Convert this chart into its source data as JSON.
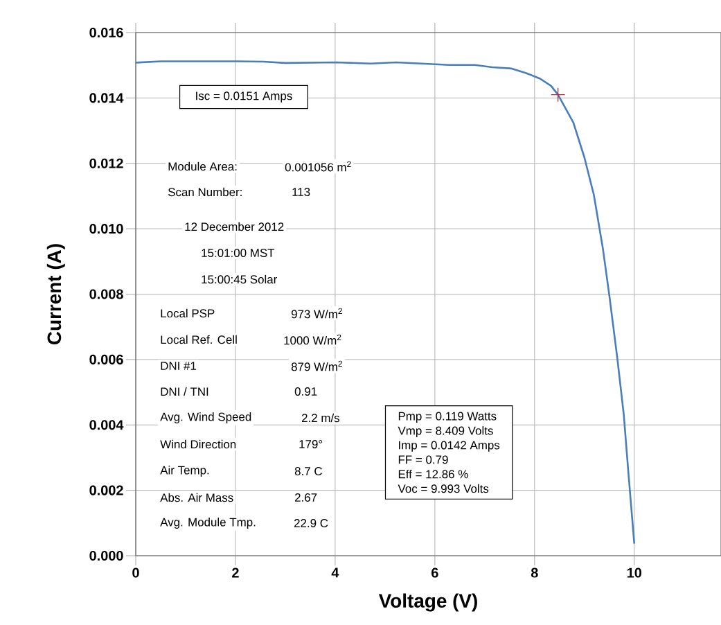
{
  "chart_data": {
    "type": "line",
    "xlabel": "Voltage (V)",
    "ylabel": "Current (A)",
    "xlim": [
      0,
      11.74
    ],
    "ylim": [
      0,
      0.016
    ],
    "xticks": [
      0,
      2,
      4,
      6,
      8,
      10
    ],
    "yticks": [
      {
        "value": 0,
        "label": "0.000"
      },
      {
        "value": 0.002,
        "label": "0.002"
      },
      {
        "value": 0.004,
        "label": "0.004"
      },
      {
        "value": 0.006,
        "label": "0.006"
      },
      {
        "value": 0.008,
        "label": "0.008"
      },
      {
        "value": 0.01,
        "label": "0.010"
      },
      {
        "value": 0.012,
        "label": "0.012"
      },
      {
        "value": 0.014,
        "label": "0.014"
      },
      {
        "value": 0.016,
        "label": "0.016"
      }
    ],
    "grid": true,
    "series": [
      {
        "color": "#4a7ebb",
        "marker": "none",
        "x": [
          0,
          0.51,
          2.04,
          2.56,
          3.0,
          4.03,
          4.71,
          5.22,
          5.73,
          6.29,
          6.8,
          7.15,
          7.54,
          7.83,
          8.11,
          8.33,
          8.47,
          8.78,
          9.0,
          9.19,
          9.37,
          9.5,
          9.66,
          9.79,
          9.88,
          10.0
        ],
        "values": [
          0.01508,
          0.01512,
          0.01512,
          0.01511,
          0.01507,
          0.01509,
          0.01505,
          0.01509,
          0.01505,
          0.01501,
          0.01501,
          0.01494,
          0.0149,
          0.01476,
          0.01459,
          0.01437,
          0.0141,
          0.01324,
          0.01218,
          0.01103,
          0.0094,
          0.00796,
          0.00604,
          0.00431,
          0.00258,
          0.00037
        ]
      },
      {
        "type": "scatter",
        "color": "#c0283c",
        "marker": "cross",
        "x": [
          8.47
        ],
        "values": [
          0.0141
        ]
      }
    ],
    "annotations": [
      "Isc = 0.0151 Amps",
      "Module Area:",
      "0.001056 m$^{2}$",
      "Scan Number:",
      "113",
      "12 December 2012",
      "15:01:00 MST",
      "15:00:45 Solar",
      "Local PSP",
      "973 W/m$^{2}$",
      "Local Ref. Cell",
      "1000 W/m$^{2}$",
      "DNI #1",
      "879 W/m$^{2}$",
      "DNI / TNI",
      "0.91",
      "Avg. Wind Speed",
      "2.2 m/s",
      "Wind Direction",
      "179°",
      "Air Temp.",
      "8.7 C",
      "Abs. Air Mass",
      "2.67",
      "Avg. Module Tmp.",
      "22.9 C",
      "Pmp = 0.119 Watts",
      "Vmp = 8.409 Volts",
      "Imp = 0.0142 Amps",
      "FF = 0.79",
      "Eff = 12.86 %",
      "Voc = 9.993 Volts"
    ]
  }
}
